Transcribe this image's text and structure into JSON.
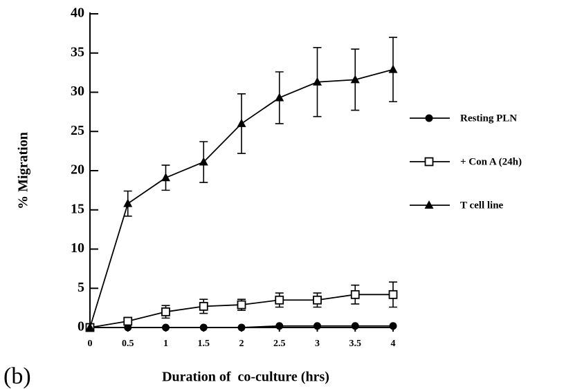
{
  "chart_data": {
    "type": "line",
    "annotation": "(b)",
    "xlabel": "Duration of  co-culture (hrs)",
    "ylabel": "% Migration",
    "x": [
      0,
      0.5,
      1,
      1.5,
      2,
      2.5,
      3,
      3.5,
      4
    ],
    "series": [
      {
        "name": "Resting PLN",
        "color": "#000000",
        "marker": "circle",
        "values": [
          0,
          0,
          0,
          0,
          0,
          0.2,
          0.2,
          0.2,
          0.2
        ]
      },
      {
        "name": "+ Con A (24h)",
        "color": "#000000",
        "marker": "open-square",
        "values": [
          0,
          0.8,
          2.0,
          2.7,
          2.9,
          3.5,
          3.5,
          4.2,
          4.2
        ],
        "errors": [
          0,
          0.3,
          0.8,
          0.9,
          0.7,
          0.9,
          0.9,
          1.2,
          1.6
        ]
      },
      {
        "name": "T cell line",
        "color": "#000000",
        "marker": "triangle",
        "values": [
          0,
          15.8,
          19.1,
          21.1,
          26,
          29.3,
          31.3,
          31.6,
          32.9
        ],
        "errors": [
          0,
          1.6,
          1.6,
          2.6,
          3.8,
          3.3,
          4.4,
          3.9,
          4.1
        ]
      }
    ],
    "xlim": [
      0,
      4
    ],
    "xticks": [
      0,
      0.5,
      1,
      1.5,
      2,
      2.5,
      3,
      3.5,
      4
    ],
    "ylim": [
      0,
      40
    ],
    "yticks": [
      0,
      5,
      10,
      15,
      20,
      25,
      30,
      35,
      40
    ],
    "grid": false,
    "legend": "right"
  }
}
